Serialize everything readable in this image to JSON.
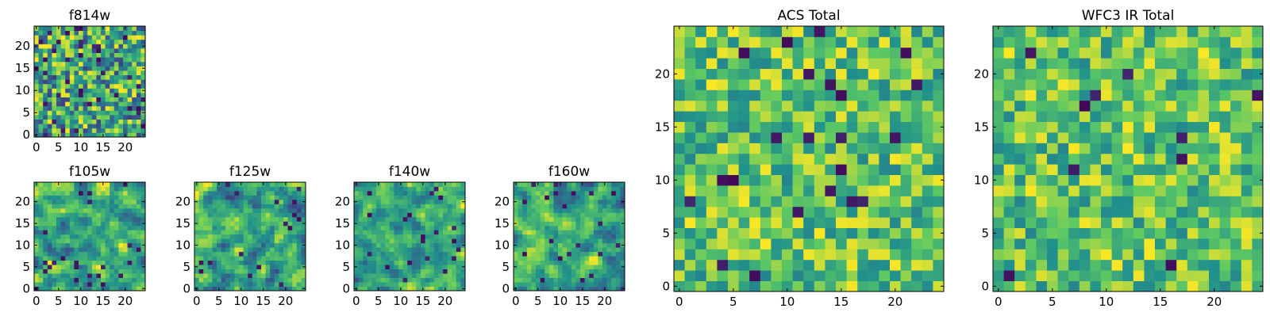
{
  "figure": {
    "description_title": ""
  },
  "colormap": {
    "name": "viridis",
    "stops": [
      "#440154",
      "#3b528b",
      "#21908d",
      "#5dc963",
      "#fde725"
    ],
    "cell_palette": [
      "#3a2e7d",
      "#31688e",
      "#26828e",
      "#21a685",
      "#53c568",
      "#8fd744",
      "#b5de2b",
      "#dce319",
      "#f2e51d"
    ]
  },
  "chart_data": [
    {
      "id": "f814w",
      "type": "heatmap",
      "title": "f814w",
      "grid_size": 25,
      "xlim": [
        -0.5,
        24.5
      ],
      "ylim": [
        -0.5,
        24.5
      ],
      "xticks": [
        0,
        5,
        10,
        15,
        20
      ],
      "yticks": [
        0,
        5,
        10,
        15,
        20
      ],
      "xtick_labels": [
        "0",
        "5",
        "10",
        "15",
        "20"
      ],
      "ytick_labels": [
        "0",
        "5",
        "10",
        "15",
        "20"
      ],
      "seed": 11,
      "smooth": 0,
      "dark_fraction": 0.07,
      "dist": "uniform"
    },
    {
      "id": "f105w",
      "type": "heatmap",
      "title": "f105w",
      "grid_size": 25,
      "xlim": [
        -0.5,
        24.5
      ],
      "ylim": [
        -0.5,
        24.5
      ],
      "xticks": [
        0,
        5,
        10,
        15,
        20
      ],
      "yticks": [
        0,
        5,
        10,
        15,
        20
      ],
      "xtick_labels": [
        "0",
        "5",
        "10",
        "15",
        "20"
      ],
      "ytick_labels": [
        "0",
        "5",
        "10",
        "15",
        "20"
      ],
      "seed": 23,
      "smooth": 1,
      "dark_fraction": 0.03,
      "dist": "bright"
    },
    {
      "id": "f125w",
      "type": "heatmap",
      "title": "f125w",
      "grid_size": 25,
      "xlim": [
        -0.5,
        24.5
      ],
      "ylim": [
        -0.5,
        24.5
      ],
      "xticks": [
        0,
        5,
        10,
        15,
        20
      ],
      "yticks": [
        0,
        5,
        10,
        15,
        20
      ],
      "xtick_labels": [
        "0",
        "5",
        "10",
        "15",
        "20"
      ],
      "ytick_labels": [
        "0",
        "5",
        "10",
        "15",
        "20"
      ],
      "seed": 37,
      "smooth": 1,
      "dark_fraction": 0.03,
      "dist": "uniform"
    },
    {
      "id": "f140w",
      "type": "heatmap",
      "title": "f140w",
      "grid_size": 25,
      "xlim": [
        -0.5,
        24.5
      ],
      "ylim": [
        -0.5,
        24.5
      ],
      "xticks": [
        0,
        5,
        10,
        15,
        20
      ],
      "yticks": [
        0,
        5,
        10,
        15,
        20
      ],
      "xtick_labels": [
        "0",
        "5",
        "10",
        "15",
        "20"
      ],
      "ytick_labels": [
        "0",
        "5",
        "10",
        "15",
        "20"
      ],
      "seed": 41,
      "smooth": 1,
      "dark_fraction": 0.03,
      "dist": "bright"
    },
    {
      "id": "f160w",
      "type": "heatmap",
      "title": "f160w",
      "grid_size": 25,
      "xlim": [
        -0.5,
        24.5
      ],
      "ylim": [
        -0.5,
        24.5
      ],
      "xticks": [
        0,
        5,
        10,
        15,
        20
      ],
      "yticks": [
        0,
        5,
        10,
        15,
        20
      ],
      "xtick_labels": [
        "0",
        "5",
        "10",
        "15",
        "20"
      ],
      "ytick_labels": [
        "0",
        "5",
        "10",
        "15",
        "20"
      ],
      "seed": 53,
      "smooth": 1,
      "dark_fraction": 0.04,
      "dist": "uniform"
    },
    {
      "id": "acs_total",
      "type": "heatmap",
      "title": "ACS Total",
      "grid_size": 25,
      "xlim": [
        -0.5,
        24.5
      ],
      "ylim": [
        -0.5,
        24.5
      ],
      "xticks": [
        0,
        5,
        10,
        15,
        20
      ],
      "yticks": [
        0,
        5,
        10,
        15,
        20
      ],
      "xtick_labels": [
        "0",
        "5",
        "10",
        "15",
        "20"
      ],
      "ytick_labels": [
        "0",
        "5",
        "10",
        "15",
        "20"
      ],
      "seed": 67,
      "smooth": 0,
      "dark_fraction": 0.025,
      "dist": "green"
    },
    {
      "id": "wfc3_ir_total",
      "type": "heatmap",
      "title": "WFC3 IR Total",
      "grid_size": 25,
      "xlim": [
        -0.5,
        24.5
      ],
      "ylim": [
        -0.5,
        24.5
      ],
      "xticks": [
        0,
        5,
        10,
        15,
        20
      ],
      "yticks": [
        0,
        5,
        10,
        15,
        20
      ],
      "xtick_labels": [
        "0",
        "5",
        "10",
        "15",
        "20"
      ],
      "ytick_labels": [
        "0",
        "5",
        "10",
        "15",
        "20"
      ],
      "seed": 79,
      "smooth": 0,
      "dark_fraction": 0.025,
      "dist": "green"
    }
  ]
}
